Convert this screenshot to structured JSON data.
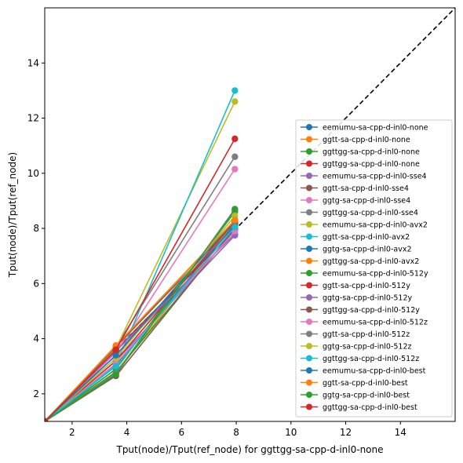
{
  "chart_data": {
    "type": "line",
    "title": "",
    "xlabel": "Tput(node)/Tput(ref_node) for ggttgg-sa-cpp-d-inl0-none",
    "ylabel": "Tput(node)/Tput(ref_node)",
    "xlim": [
      1,
      16
    ],
    "ylim": [
      1,
      16
    ],
    "xticks": [
      "2",
      "4",
      "6",
      "8",
      "10",
      "12",
      "14"
    ],
    "yticks": [
      "2",
      "4",
      "6",
      "8",
      "10",
      "12",
      "14"
    ],
    "grid": false,
    "legend_position": "lower-right",
    "diagonal_reference": true,
    "x": [
      1,
      3.6,
      7.95
    ],
    "series": [
      {
        "name": "eemumu-sa-cpp-d-inl0-none",
        "color": "#1f77b4",
        "values": [
          1,
          3.05,
          8.15
        ]
      },
      {
        "name": "ggtt-sa-cpp-d-inl0-none",
        "color": "#ff7f0e",
        "values": [
          1,
          2.75,
          8.25
        ]
      },
      {
        "name": "ggttgg-sa-cpp-d-inl0-none",
        "color": "#2ca02c",
        "values": [
          1,
          2.8,
          7.95
        ]
      },
      {
        "name": "ggttgg-sa-cpp-d-inl0-none",
        "color": "#d62728",
        "values": [
          1,
          3.6,
          7.95
        ]
      },
      {
        "name": "eemumu-sa-cpp-d-inl0-sse4",
        "color": "#9467bd",
        "values": [
          1,
          3.2,
          7.75
        ]
      },
      {
        "name": "ggtt-sa-cpp-d-inl0-sse4",
        "color": "#8c564b",
        "values": [
          1,
          2.65,
          8.0
        ]
      },
      {
        "name": "ggtg-sa-cpp-d-inl0-sse4",
        "color": "#e377c2",
        "values": [
          1,
          3.5,
          10.15
        ]
      },
      {
        "name": "ggttgg-sa-cpp-d-inl0-sse4",
        "color": "#7f7f7f",
        "values": [
          1,
          3.7,
          10.6
        ]
      },
      {
        "name": "eemumu-sa-cpp-d-inl0-avx2",
        "color": "#bcbd22",
        "values": [
          1,
          3.65,
          12.6
        ]
      },
      {
        "name": "ggtt-sa-cpp-d-inl0-avx2",
        "color": "#17becf",
        "values": [
          1,
          3.05,
          13.0
        ]
      },
      {
        "name": "ggtg-sa-cpp-d-inl0-avx2",
        "color": "#1f77b4",
        "values": [
          1,
          3.4,
          8.1
        ]
      },
      {
        "name": "ggttgg-sa-cpp-d-inl0-avx2",
        "color": "#ff7f0e",
        "values": [
          1,
          3.75,
          8.3
        ]
      },
      {
        "name": "eemumu-sa-cpp-d-inl0-512y",
        "color": "#2ca02c",
        "values": [
          1,
          2.9,
          8.6
        ]
      },
      {
        "name": "ggtt-sa-cpp-d-inl0-512y",
        "color": "#d62728",
        "values": [
          1,
          3.2,
          8.25
        ]
      },
      {
        "name": "ggtg-sa-cpp-d-inl0-512y",
        "color": "#9467bd",
        "values": [
          1,
          3.55,
          7.8
        ]
      },
      {
        "name": "ggttgg-sa-cpp-d-inl0-512y",
        "color": "#8c564b",
        "values": [
          1,
          3.7,
          8.2
        ]
      },
      {
        "name": "eemumu-sa-cpp-d-inl0-512z",
        "color": "#e377c2",
        "values": [
          1,
          3.1,
          7.9
        ]
      },
      {
        "name": "ggtt-sa-cpp-d-inl0-512z",
        "color": "#7f7f7f",
        "values": [
          1,
          2.75,
          8.65
        ]
      },
      {
        "name": "ggtg-sa-cpp-d-inl0-512z",
        "color": "#bcbd22",
        "values": [
          1,
          3.3,
          8.45
        ]
      },
      {
        "name": "ggttgg-sa-cpp-d-inl0-512z",
        "color": "#17becf",
        "values": [
          1,
          3.0,
          8.05
        ]
      },
      {
        "name": "eemumu-sa-cpp-d-inl0-best",
        "color": "#1f77b4",
        "values": [
          1,
          3.4,
          8.3
        ]
      },
      {
        "name": "ggtt-sa-cpp-d-inl0-best",
        "color": "#ff7f0e",
        "values": [
          1,
          3.75,
          8.3
        ]
      },
      {
        "name": "ggtg-sa-cpp-d-inl0-best",
        "color": "#2ca02c",
        "values": [
          1,
          2.7,
          8.7
        ]
      },
      {
        "name": "ggttgg-sa-cpp-d-inl0-best",
        "color": "#d62728",
        "values": [
          1,
          3.6,
          11.25
        ]
      }
    ]
  }
}
